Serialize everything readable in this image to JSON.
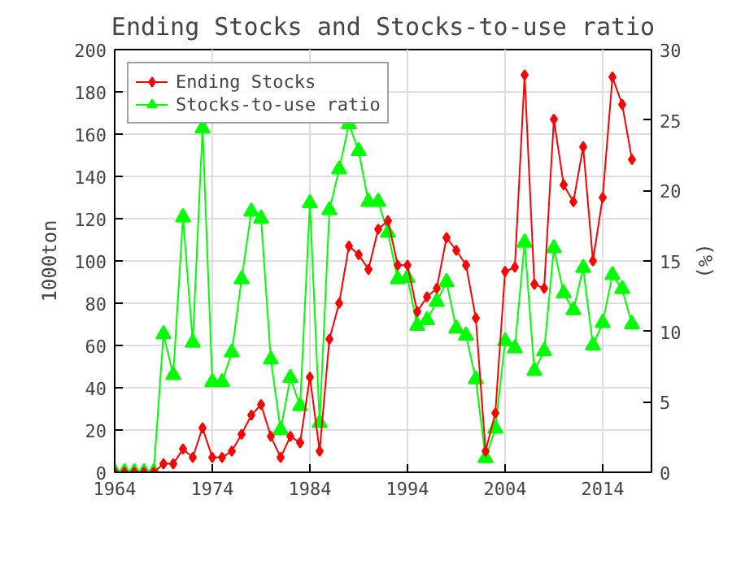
{
  "chart_data": {
    "type": "line",
    "title": "Ending Stocks and Stocks-to-use ratio",
    "ylabel": "1000ton",
    "y2label": "(%)",
    "x": [
      1964,
      1965,
      1966,
      1967,
      1968,
      1969,
      1970,
      1971,
      1972,
      1973,
      1974,
      1975,
      1976,
      1977,
      1978,
      1979,
      1980,
      1981,
      1982,
      1983,
      1984,
      1985,
      1986,
      1987,
      1988,
      1989,
      1990,
      1991,
      1992,
      1993,
      1994,
      1995,
      1996,
      1997,
      1998,
      1999,
      2000,
      2001,
      2002,
      2003,
      2004,
      2005,
      2006,
      2007,
      2008,
      2009,
      2010,
      2011,
      2012,
      2013,
      2014,
      2015,
      2016,
      2017
    ],
    "series": [
      {
        "name": "Ending Stocks",
        "color": "#ff0000",
        "marker": "diamond",
        "values": [
          0,
          0,
          0,
          0,
          0,
          4,
          4,
          11,
          7,
          21,
          7,
          7,
          10,
          18,
          27,
          32,
          17,
          7,
          17,
          14,
          45,
          10,
          63,
          80,
          107,
          103,
          96,
          115,
          119,
          98,
          98,
          76,
          83,
          87,
          111,
          105,
          98,
          73,
          10,
          28,
          95,
          97,
          188,
          89,
          87,
          167,
          136,
          128,
          154,
          100,
          130,
          187,
          174,
          148
        ]
      },
      {
        "name": "Stocks-to-use ratio",
        "color": "#00ff00",
        "marker": "triangle",
        "axis": "y2",
        "values": [
          0,
          0,
          0,
          0,
          0,
          9.8,
          6.9,
          18.1,
          9.2,
          24.4,
          6.4,
          6.4,
          8.5,
          13.7,
          18.5,
          18,
          8,
          3,
          6.7,
          4.7,
          19.1,
          3.5,
          18.6,
          21.5,
          24.7,
          22.8,
          19.2,
          19.2,
          17,
          13.7,
          13.8,
          10.4,
          10.8,
          12.1,
          13.5,
          10.2,
          9.7,
          6.6,
          1,
          3.1,
          9.3,
          8.8,
          16.3,
          7.2,
          8.6,
          15.9,
          12.7,
          11.5,
          14.5,
          9,
          10.6,
          14,
          13,
          10.5
        ]
      }
    ],
    "xlim": [
      1964,
      2019
    ],
    "xticks": [
      1964,
      1974,
      1984,
      1994,
      2004,
      2014
    ],
    "ylim": [
      0,
      200
    ],
    "yticks": [
      0,
      20,
      40,
      60,
      80,
      100,
      120,
      140,
      160,
      180,
      200
    ],
    "y2lim": [
      0,
      30
    ],
    "y2ticks": [
      0,
      5,
      10,
      15,
      20,
      25,
      30
    ],
    "grid": true,
    "legend": "top left"
  }
}
